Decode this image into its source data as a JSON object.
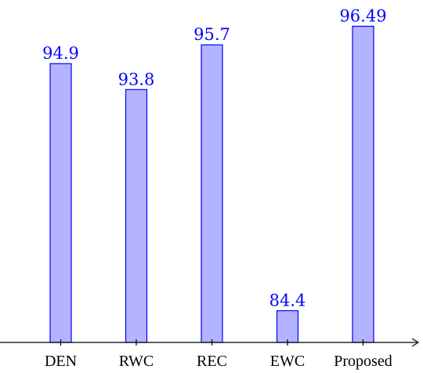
{
  "chart_data": {
    "type": "bar",
    "categories": [
      "DEN",
      "RWC",
      "REC",
      "EWC",
      "Proposed"
    ],
    "values": [
      94.9,
      93.8,
      95.7,
      84.4,
      96.49
    ],
    "value_labels": [
      "94.9",
      "93.8",
      "95.7",
      "84.4",
      "96.49"
    ],
    "title": "",
    "xlabel": "",
    "ylabel": "",
    "ylim": [
      83.05,
      97.24
    ],
    "grid": false,
    "legend": "none",
    "colors": {
      "bar_fill": "#b3b3ff",
      "bar_stroke": "#0000ff",
      "label": "#0000ff"
    }
  }
}
